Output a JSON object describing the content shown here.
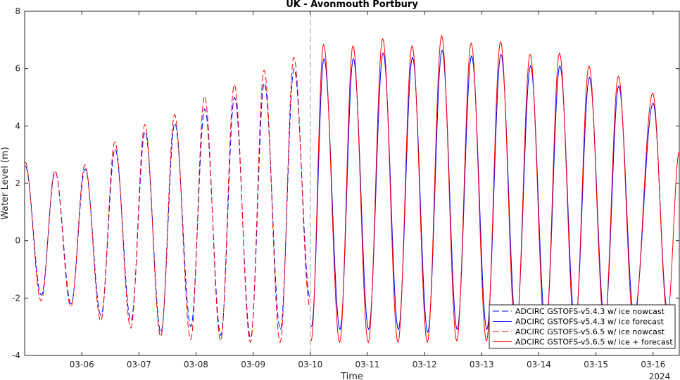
{
  "chart_data": {
    "type": "line",
    "title": "UK - Avonmouth Portbury",
    "xlabel": "Time",
    "ylabel": "Water Level (m)",
    "year_label": "2024",
    "x_range_days": [
      "2024-03-05T00:00",
      "2024-03-16T11:00"
    ],
    "x_ticks": [
      "03-06",
      "03-07",
      "03-08",
      "03-09",
      "03-10",
      "03-11",
      "03-12",
      "03-13",
      "03-14",
      "03-15",
      "03-16"
    ],
    "y_ticks": [
      "-4",
      "-2",
      "0",
      "2",
      "4",
      "6",
      "8"
    ],
    "ylim": [
      -4,
      8
    ],
    "nowcast_forecast_boundary": "2024-03-10T00:00",
    "grid": false,
    "legend_position": "bottom-right",
    "series": [
      {
        "name": "ADCIRC GSTOFS-v5.4.3 w/ ice nowcast",
        "color": "#0000ff",
        "style": "dashed",
        "highs": [
          [
            "03-05 00:15",
            2.6
          ],
          [
            "03-05 12:50",
            2.4
          ],
          [
            "03-06 01:25",
            2.5
          ],
          [
            "03-06 14:00",
            3.2
          ],
          [
            "03-07 02:35",
            3.8
          ],
          [
            "03-07 15:05",
            4.1
          ],
          [
            "03-08 03:40",
            4.6
          ],
          [
            "03-08 16:10",
            5.0
          ],
          [
            "03-09 04:40",
            5.5
          ],
          [
            "03-09 17:10",
            6.0
          ]
        ],
        "lows": [
          [
            "03-05 07:00",
            -1.9
          ],
          [
            "03-05 19:30",
            -2.2
          ],
          [
            "03-06 08:05",
            -2.6
          ],
          [
            "03-06 20:40",
            -2.8
          ],
          [
            "03-07 09:15",
            -3.2
          ],
          [
            "03-07 21:50",
            -3.0
          ],
          [
            "03-08 10:25",
            -3.3
          ],
          [
            "03-08 22:55",
            -3.4
          ],
          [
            "03-09 11:25",
            -3.1
          ],
          [
            "03-09 23:55",
            -2.0
          ]
        ]
      },
      {
        "name": "ADCIRC GSTOFS-v5.4.3 w/ ice forecast",
        "color": "#0000ff",
        "style": "solid",
        "highs": [
          [
            "03-10 05:45",
            6.35
          ],
          [
            "03-10 18:05",
            6.35
          ],
          [
            "03-11 06:35",
            6.55
          ],
          [
            "03-11 18:55",
            6.4
          ],
          [
            "03-12 07:20",
            6.65
          ],
          [
            "03-12 19:45",
            6.45
          ],
          [
            "03-13 08:05",
            6.5
          ],
          [
            "03-13 20:30",
            6.1
          ],
          [
            "03-14 08:50",
            6.1
          ],
          [
            "03-14 21:15",
            5.7
          ],
          [
            "03-15 09:35",
            5.4
          ],
          [
            "03-16 00:00",
            4.8
          ]
        ],
        "lows": [
          [
            "03-10 00:30",
            -3.0
          ],
          [
            "03-10 12:30",
            -3.1
          ],
          [
            "03-11 00:30",
            -3.1
          ],
          [
            "03-11 13:00",
            -3.1
          ],
          [
            "03-12 01:20",
            -3.2
          ],
          [
            "03-12 13:40",
            -3.1
          ],
          [
            "03-13 02:10",
            -3.1
          ],
          [
            "03-13 14:30",
            -3.0
          ],
          [
            "03-14 02:55",
            -3.0
          ],
          [
            "03-14 15:15",
            -2.9
          ],
          [
            "03-15 03:40",
            -2.8
          ],
          [
            "03-15 16:00",
            -2.6
          ],
          [
            "03-16 06:00",
            -2.4
          ]
        ]
      },
      {
        "name": "ADCIRC GSTOFS-v5.6.5 w/ ice nowcast",
        "color": "#ff0000",
        "style": "dashed",
        "highs": [
          [
            "03-05 00:10",
            2.75
          ],
          [
            "03-05 12:45",
            2.45
          ],
          [
            "03-06 01:20",
            2.65
          ],
          [
            "03-06 13:55",
            3.45
          ],
          [
            "03-07 02:30",
            4.05
          ],
          [
            "03-07 15:00",
            4.4
          ],
          [
            "03-08 03:35",
            5.05
          ],
          [
            "03-08 16:05",
            5.45
          ],
          [
            "03-09 04:35",
            5.95
          ],
          [
            "03-09 17:05",
            6.4
          ]
        ],
        "lows": [
          [
            "03-05 06:55",
            -2.1
          ],
          [
            "03-05 19:25",
            -2.3
          ],
          [
            "03-06 08:00",
            -2.8
          ],
          [
            "03-06 20:35",
            -3.05
          ],
          [
            "03-07 09:10",
            -3.35
          ],
          [
            "03-07 21:45",
            -3.45
          ],
          [
            "03-08 10:20",
            -3.5
          ],
          [
            "03-08 22:50",
            -3.55
          ],
          [
            "03-09 11:20",
            -3.55
          ],
          [
            "03-09 23:50",
            -2.3
          ]
        ]
      },
      {
        "name": "ADCIRC GSTOFS-v5.6.5 w/ ice + forecast",
        "color": "#ff0000",
        "style": "solid",
        "highs": [
          [
            "03-10 05:35",
            6.85
          ],
          [
            "03-10 17:55",
            6.8
          ],
          [
            "03-11 06:25",
            7.05
          ],
          [
            "03-11 18:45",
            6.8
          ],
          [
            "03-12 07:10",
            7.15
          ],
          [
            "03-12 19:35",
            6.9
          ],
          [
            "03-13 07:55",
            6.95
          ],
          [
            "03-13 20:20",
            6.5
          ],
          [
            "03-14 08:40",
            6.55
          ],
          [
            "03-14 21:05",
            6.1
          ],
          [
            "03-15 09:25",
            5.75
          ],
          [
            "03-15 23:50",
            5.15
          ]
        ],
        "lows": [
          [
            "03-10 00:20",
            -3.5
          ],
          [
            "03-10 12:20",
            -3.55
          ],
          [
            "03-11 00:20",
            -3.55
          ],
          [
            "03-11 12:50",
            -3.55
          ],
          [
            "03-12 01:10",
            -3.55
          ],
          [
            "03-12 13:30",
            -3.5
          ],
          [
            "03-13 02:00",
            -3.5
          ],
          [
            "03-13 14:20",
            -3.4
          ],
          [
            "03-14 02:45",
            -3.35
          ],
          [
            "03-14 15:05",
            -3.2
          ],
          [
            "03-15 03:30",
            -3.0
          ],
          [
            "03-15 15:50",
            -2.9
          ],
          [
            "03-16 06:00",
            -2.6
          ],
          [
            "03-16 11:00",
            3.1
          ]
        ]
      }
    ]
  }
}
